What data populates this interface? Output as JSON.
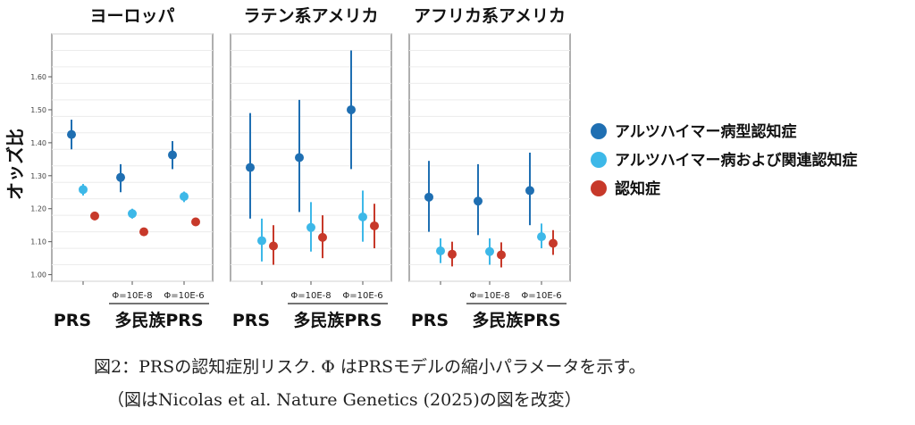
{
  "chart_data": {
    "type": "scatter",
    "ylabel": "オッズ比",
    "ylim": [
      0.98,
      1.73
    ],
    "y_ticks": [
      "1.00",
      "1.10",
      "1.20",
      "1.30",
      "1.40",
      "1.50",
      "1.60"
    ],
    "y_tick_values": [
      1.0,
      1.1,
      1.2,
      1.3,
      1.4,
      1.5,
      1.6
    ],
    "x_groups": {
      "prs": "PRS",
      "multi": "多民族PRS",
      "phi1": "Φ=10E-8",
      "phi2": "Φ=10E-6"
    },
    "legend_position": "right",
    "grid": true,
    "series": [
      {
        "name": "アルツハイマー病型認知症",
        "color": "#1f6fb2"
      },
      {
        "name": "アルツハイマー病および関連認知症",
        "color": "#3db8e8"
      },
      {
        "name": "認知症",
        "color": "#c7392a"
      }
    ],
    "panels": [
      {
        "title": "ヨーロッパ",
        "groups": [
          {
            "label": "PRS",
            "points": [
              {
                "y": 1.425,
                "lo": 1.38,
                "hi": 1.47
              },
              {
                "y": 1.258,
                "lo": 1.24,
                "hi": 1.275
              },
              {
                "y": 1.178,
                "lo": 1.165,
                "hi": 1.19
              }
            ]
          },
          {
            "label": "Φ=10E-8",
            "points": [
              {
                "y": 1.295,
                "lo": 1.25,
                "hi": 1.335
              },
              {
                "y": 1.185,
                "lo": 1.17,
                "hi": 1.2
              },
              {
                "y": 1.13,
                "lo": 1.118,
                "hi": 1.142
              }
            ]
          },
          {
            "label": "Φ=10E-6",
            "points": [
              {
                "y": 1.363,
                "lo": 1.32,
                "hi": 1.405
              },
              {
                "y": 1.237,
                "lo": 1.22,
                "hi": 1.252
              },
              {
                "y": 1.16,
                "lo": 1.148,
                "hi": 1.172
              }
            ]
          }
        ]
      },
      {
        "title": "ラテン系アメリカ",
        "groups": [
          {
            "label": "PRS",
            "points": [
              {
                "y": 1.325,
                "lo": 1.17,
                "hi": 1.49
              },
              {
                "y": 1.103,
                "lo": 1.04,
                "hi": 1.17
              },
              {
                "y": 1.087,
                "lo": 1.03,
                "hi": 1.15
              }
            ]
          },
          {
            "label": "Φ=10E-8",
            "points": [
              {
                "y": 1.355,
                "lo": 1.19,
                "hi": 1.53
              },
              {
                "y": 1.143,
                "lo": 1.07,
                "hi": 1.22
              },
              {
                "y": 1.113,
                "lo": 1.05,
                "hi": 1.18
              }
            ]
          },
          {
            "label": "Φ=10E-6",
            "points": [
              {
                "y": 1.5,
                "lo": 1.32,
                "hi": 1.68
              },
              {
                "y": 1.175,
                "lo": 1.1,
                "hi": 1.255
              },
              {
                "y": 1.148,
                "lo": 1.08,
                "hi": 1.215
              }
            ]
          }
        ]
      },
      {
        "title": "アフリカ系アメリカ",
        "groups": [
          {
            "label": "PRS",
            "points": [
              {
                "y": 1.235,
                "lo": 1.13,
                "hi": 1.345
              },
              {
                "y": 1.072,
                "lo": 1.035,
                "hi": 1.11
              },
              {
                "y": 1.062,
                "lo": 1.025,
                "hi": 1.1
              }
            ]
          },
          {
            "label": "Φ=10E-8",
            "points": [
              {
                "y": 1.223,
                "lo": 1.12,
                "hi": 1.335
              },
              {
                "y": 1.07,
                "lo": 1.03,
                "hi": 1.11
              },
              {
                "y": 1.06,
                "lo": 1.022,
                "hi": 1.098
              }
            ]
          },
          {
            "label": "Φ=10E-6",
            "points": [
              {
                "y": 1.255,
                "lo": 1.15,
                "hi": 1.37
              },
              {
                "y": 1.115,
                "lo": 1.08,
                "hi": 1.155
              },
              {
                "y": 1.095,
                "lo": 1.06,
                "hi": 1.135
              }
            ]
          }
        ]
      }
    ]
  },
  "caption": {
    "line1": "図2：PRSの認知症別リスク. Φ はPRSモデルの縮小パラメータを示す。",
    "line2": "（図はNicolas et al. Nature Genetics (2025)の図を改変）"
  }
}
